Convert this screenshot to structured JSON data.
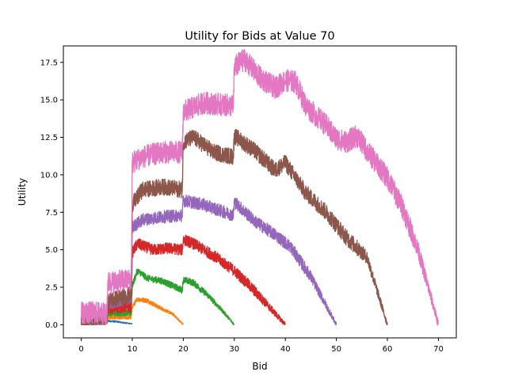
{
  "chart_data": {
    "type": "line",
    "title": "Utility for Bids at Value 70",
    "xlabel": "Bid",
    "ylabel": "Utility",
    "xlim": [
      -3.5,
      73.5
    ],
    "ylim": [
      -0.88,
      18.6
    ],
    "xticks": [
      0,
      10,
      20,
      30,
      40,
      50,
      60,
      70
    ],
    "yticks": [
      0.0,
      2.5,
      5.0,
      7.5,
      10.0,
      12.5,
      15.0,
      17.5
    ],
    "xtick_labels": [
      "0",
      "10",
      "20",
      "30",
      "40",
      "50",
      "60",
      "70"
    ],
    "ytick_labels": [
      "0.0",
      "2.5",
      "5.0",
      "7.5",
      "10.0",
      "12.5",
      "15.0",
      "17.5"
    ],
    "grid": false,
    "series": [
      {
        "color": "#1f77b4",
        "noise": 0.08,
        "points": [
          [
            0,
            0.1
          ],
          [
            2,
            0.1
          ],
          [
            5,
            0.1
          ],
          [
            5.2,
            0.25
          ],
          [
            7,
            0.2
          ],
          [
            9,
            0.1
          ],
          [
            10,
            0.05
          ]
        ]
      },
      {
        "color": "#ff7f0e",
        "noise": 0.15,
        "points": [
          [
            0,
            0.15
          ],
          [
            5,
            0.2
          ],
          [
            5.2,
            0.5
          ],
          [
            9.8,
            0.5
          ],
          [
            10,
            1.2
          ],
          [
            11,
            1.7
          ],
          [
            13,
            1.6
          ],
          [
            15,
            1.2
          ],
          [
            18,
            0.7
          ],
          [
            20,
            0.0
          ]
        ]
      },
      {
        "color": "#2ca02c",
        "noise": 0.22,
        "points": [
          [
            0,
            0.2
          ],
          [
            5,
            0.3
          ],
          [
            5.2,
            0.8
          ],
          [
            9.8,
            0.8
          ],
          [
            10,
            2.6
          ],
          [
            11,
            3.6
          ],
          [
            13,
            3.1
          ],
          [
            16,
            2.9
          ],
          [
            19.8,
            2.3
          ],
          [
            20,
            3.0
          ],
          [
            22,
            2.8
          ],
          [
            25,
            1.9
          ],
          [
            28,
            0.8
          ],
          [
            30,
            0.0
          ]
        ]
      },
      {
        "color": "#d62728",
        "noise": 0.38,
        "points": [
          [
            0,
            0.25
          ],
          [
            5,
            0.4
          ],
          [
            5.2,
            1.1
          ],
          [
            9.8,
            1.2
          ],
          [
            10,
            4.8
          ],
          [
            11,
            5.4
          ],
          [
            14,
            5.0
          ],
          [
            17,
            5.1
          ],
          [
            19.8,
            5.0
          ],
          [
            20,
            5.7
          ],
          [
            22,
            5.4
          ],
          [
            26,
            4.6
          ],
          [
            30,
            3.6
          ],
          [
            33,
            2.6
          ],
          [
            36,
            1.5
          ],
          [
            40,
            0.0
          ]
        ]
      },
      {
        "color": "#9467bd",
        "noise": 0.42,
        "points": [
          [
            0,
            0.3
          ],
          [
            5,
            0.5
          ],
          [
            5.2,
            1.4
          ],
          [
            9.8,
            1.8
          ],
          [
            10,
            6.5
          ],
          [
            12,
            7.0
          ],
          [
            16,
            7.2
          ],
          [
            19.8,
            7.3
          ],
          [
            20,
            8.3
          ],
          [
            24,
            8.0
          ],
          [
            29.8,
            7.3
          ],
          [
            30,
            8.2
          ],
          [
            34,
            6.9
          ],
          [
            38,
            6.0
          ],
          [
            41,
            5.2
          ],
          [
            45,
            3.2
          ],
          [
            50,
            0.0
          ]
        ]
      },
      {
        "color": "#8c564b",
        "noise": 0.55,
        "points": [
          [
            0,
            0.35
          ],
          [
            5,
            0.6
          ],
          [
            5.2,
            1.6
          ],
          [
            9.8,
            2.0
          ],
          [
            10,
            8.0
          ],
          [
            12,
            9.0
          ],
          [
            16,
            9.2
          ],
          [
            19.8,
            9.0
          ],
          [
            20,
            12.2
          ],
          [
            22,
            12.5
          ],
          [
            26,
            11.5
          ],
          [
            29.8,
            11.2
          ],
          [
            30,
            12.6
          ],
          [
            34,
            11.6
          ],
          [
            38,
            10.3
          ],
          [
            40,
            10.8
          ],
          [
            44,
            8.8
          ],
          [
            48,
            7.5
          ],
          [
            52,
            5.8
          ],
          [
            56,
            4.5
          ],
          [
            60,
            0.0
          ]
        ]
      },
      {
        "color": "#e377c2",
        "noise": 0.75,
        "points": [
          [
            0,
            0.8
          ],
          [
            4,
            0.8
          ],
          [
            5,
            0.6
          ],
          [
            5.2,
            2.8
          ],
          [
            9.8,
            3.0
          ],
          [
            10,
            10.8
          ],
          [
            12,
            11.2
          ],
          [
            16,
            11.5
          ],
          [
            19.8,
            11.5
          ],
          [
            20,
            14.2
          ],
          [
            24,
            14.8
          ],
          [
            29.8,
            14.6
          ],
          [
            30,
            17.2
          ],
          [
            32,
            17.7
          ],
          [
            35,
            16.5
          ],
          [
            38,
            15.8
          ],
          [
            40,
            16.3
          ],
          [
            42,
            16.2
          ],
          [
            44,
            14.6
          ],
          [
            48,
            13.3
          ],
          [
            50,
            12.4
          ],
          [
            52,
            12.2
          ],
          [
            54,
            12.6
          ],
          [
            56,
            11.6
          ],
          [
            60,
            9.8
          ],
          [
            63,
            7.8
          ],
          [
            66,
            5.0
          ],
          [
            70,
            0.0
          ]
        ]
      }
    ]
  }
}
